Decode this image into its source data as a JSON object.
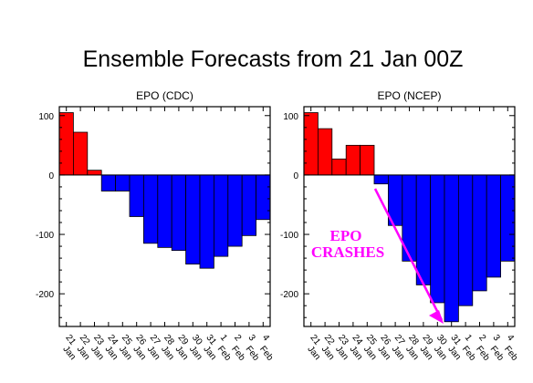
{
  "figure": {
    "title": "Ensemble Forecasts from 21 Jan 00Z"
  },
  "annotation": {
    "line1": "EPO",
    "line2": "CRASHES",
    "color": "#ff00ff"
  },
  "colors": {
    "positive": "#ff0000",
    "negative": "#0000ff",
    "axis": "#000000"
  },
  "chart_data": [
    {
      "type": "bar",
      "title": "EPO (CDC)",
      "xlabel": "",
      "ylabel": "",
      "categories": [
        "21 Jan",
        "22 Jan",
        "23 Jan",
        "24 Jan",
        "25 Jan",
        "26 Jan",
        "27 Jan",
        "28 Jan",
        "29 Jan",
        "30 Jan",
        "31 Jan",
        "1 Feb",
        "2 Feb",
        "3 Feb",
        "4 Feb"
      ],
      "values": [
        105,
        72,
        8,
        -27,
        -27,
        -70,
        -115,
        -122,
        -127,
        -150,
        -157,
        -137,
        -120,
        -102,
        -75
      ],
      "ylim": [
        -255,
        115
      ],
      "yticks": [
        100,
        0,
        -100,
        -200
      ],
      "grid": false,
      "legend": "none"
    },
    {
      "type": "bar",
      "title": "EPO (NCEP)",
      "xlabel": "",
      "ylabel": "",
      "categories": [
        "21 Jan",
        "22 Jan",
        "23 Jan",
        "24 Jan",
        "25 Jan",
        "26 Jan",
        "27 Jan",
        "28 Jan",
        "29 Jan",
        "30 Jan",
        "31 Jan",
        "1 Feb",
        "2 Feb",
        "3 Feb",
        "4 Feb"
      ],
      "values": [
        105,
        78,
        27,
        50,
        50,
        -15,
        -85,
        -145,
        -185,
        -215,
        -247,
        -220,
        -195,
        -172,
        -145
      ],
      "ylim": [
        -255,
        115
      ],
      "yticks": [
        100,
        0,
        -100,
        -200
      ],
      "grid": false,
      "legend": "none"
    }
  ]
}
